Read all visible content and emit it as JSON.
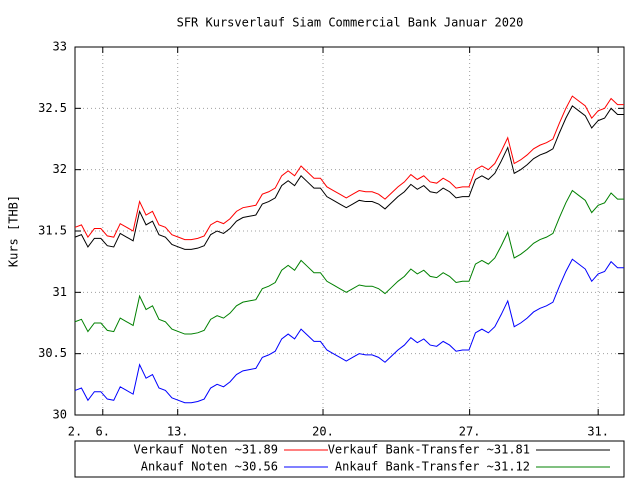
{
  "chart_data": {
    "type": "line",
    "title": "SFR Kursverlauf Siam Commercial Bank Januar 2020",
    "y_label": "Kurs [THB]",
    "x": [
      0,
      1,
      2,
      3,
      4,
      5,
      6,
      7,
      8,
      9,
      10,
      11,
      12,
      13,
      14,
      15,
      16,
      17,
      18,
      19,
      20,
      21,
      22,
      23,
      24,
      25,
      26,
      27,
      28,
      29,
      30,
      31,
      32,
      33,
      34,
      35,
      36,
      37,
      38,
      39,
      40,
      41,
      42,
      43,
      44,
      45,
      46,
      47,
      48,
      49,
      50,
      51,
      52,
      53,
      54,
      55,
      56,
      57,
      58,
      59,
      60,
      61,
      62,
      63,
      64,
      65,
      66,
      67,
      68,
      69,
      70,
      71,
      72,
      73,
      74,
      75,
      76,
      77,
      78,
      79,
      80,
      81,
      82,
      83,
      84,
      85
    ],
    "xlim": [
      0,
      85
    ],
    "xticks": [
      {
        "value": 0,
        "label": "2."
      },
      {
        "value": 4.3,
        "label": "6."
      },
      {
        "value": 15.9,
        "label": "13."
      },
      {
        "value": 38.4,
        "label": "20."
      },
      {
        "value": 61.1,
        "label": "27."
      },
      {
        "value": 81,
        "label": "31."
      }
    ],
    "ylim": [
      30,
      33
    ],
    "yticks": [
      30,
      30.5,
      31,
      31.5,
      32,
      32.5,
      33
    ],
    "grid": true,
    "series": [
      {
        "name": "Verkauf Noten ~31.89",
        "color": "#ff0000",
        "values": [
          31.53,
          31.55,
          31.45,
          31.52,
          31.52,
          31.46,
          31.45,
          31.56,
          31.53,
          31.5,
          31.74,
          31.63,
          31.66,
          31.55,
          31.53,
          31.47,
          31.45,
          31.43,
          31.43,
          31.44,
          31.46,
          31.55,
          31.58,
          31.56,
          31.6,
          31.66,
          31.69,
          31.7,
          31.71,
          31.8,
          31.82,
          31.85,
          31.95,
          31.99,
          31.95,
          32.03,
          31.98,
          31.93,
          31.93,
          31.86,
          31.83,
          31.8,
          31.77,
          31.8,
          31.83,
          31.82,
          31.82,
          31.8,
          31.76,
          31.81,
          31.86,
          31.9,
          31.96,
          31.92,
          31.95,
          31.9,
          31.89,
          31.93,
          31.9,
          31.85,
          31.86,
          31.86,
          32.0,
          32.03,
          32.0,
          32.05,
          32.15,
          32.26,
          32.05,
          32.08,
          32.12,
          32.17,
          32.2,
          32.22,
          32.25,
          32.38,
          32.5,
          32.6,
          32.56,
          32.52,
          32.42,
          32.48,
          32.5,
          32.58,
          32.53,
          32.53
        ]
      },
      {
        "name": "Verkauf Bank-Transfer ~31.81",
        "color": "#000000",
        "values": [
          31.45,
          31.47,
          31.37,
          31.44,
          31.44,
          31.38,
          31.37,
          31.48,
          31.45,
          31.42,
          31.66,
          31.55,
          31.58,
          31.47,
          31.45,
          31.39,
          31.37,
          31.35,
          31.35,
          31.36,
          31.38,
          31.47,
          31.5,
          31.48,
          31.52,
          31.58,
          31.61,
          31.62,
          31.63,
          31.72,
          31.74,
          31.77,
          31.87,
          31.91,
          31.87,
          31.95,
          31.9,
          31.85,
          31.85,
          31.78,
          31.75,
          31.72,
          31.69,
          31.72,
          31.75,
          31.74,
          31.74,
          31.72,
          31.68,
          31.73,
          31.78,
          31.82,
          31.88,
          31.84,
          31.87,
          31.82,
          31.81,
          31.85,
          31.82,
          31.77,
          31.78,
          31.78,
          31.92,
          31.95,
          31.92,
          31.97,
          32.07,
          32.18,
          31.97,
          32.0,
          32.04,
          32.09,
          32.12,
          32.14,
          32.17,
          32.3,
          32.42,
          32.52,
          32.48,
          32.44,
          32.34,
          32.4,
          32.42,
          32.5,
          32.45,
          32.45
        ]
      },
      {
        "name": "Ankauf Noten ~30.56",
        "color": "#0000ff",
        "values": [
          30.2,
          30.22,
          30.12,
          30.19,
          30.19,
          30.13,
          30.12,
          30.23,
          30.2,
          30.17,
          30.41,
          30.3,
          30.33,
          30.22,
          30.2,
          30.14,
          30.12,
          30.1,
          30.1,
          30.11,
          30.13,
          30.22,
          30.25,
          30.23,
          30.27,
          30.33,
          30.36,
          30.37,
          30.38,
          30.47,
          30.49,
          30.52,
          30.62,
          30.66,
          30.62,
          30.7,
          30.65,
          30.6,
          30.6,
          30.53,
          30.5,
          30.47,
          30.44,
          30.47,
          30.5,
          30.49,
          30.49,
          30.47,
          30.43,
          30.48,
          30.53,
          30.57,
          30.63,
          30.59,
          30.62,
          30.57,
          30.56,
          30.6,
          30.57,
          30.52,
          30.53,
          30.53,
          30.67,
          30.7,
          30.67,
          30.72,
          30.82,
          30.93,
          30.72,
          30.75,
          30.79,
          30.84,
          30.87,
          30.89,
          30.92,
          31.05,
          31.17,
          31.27,
          31.23,
          31.19,
          31.09,
          31.15,
          31.17,
          31.25,
          31.2,
          31.2
        ]
      },
      {
        "name": "Ankauf Bank-Transfer ~31.12",
        "color": "#008000",
        "values": [
          30.76,
          30.78,
          30.68,
          30.75,
          30.75,
          30.69,
          30.68,
          30.79,
          30.76,
          30.73,
          30.97,
          30.86,
          30.89,
          30.78,
          30.76,
          30.7,
          30.68,
          30.66,
          30.66,
          30.67,
          30.69,
          30.78,
          30.81,
          30.79,
          30.83,
          30.89,
          30.92,
          30.93,
          30.94,
          31.03,
          31.05,
          31.08,
          31.18,
          31.22,
          31.18,
          31.26,
          31.21,
          31.16,
          31.16,
          31.09,
          31.06,
          31.03,
          31.0,
          31.03,
          31.06,
          31.05,
          31.05,
          31.03,
          30.99,
          31.04,
          31.09,
          31.13,
          31.19,
          31.15,
          31.18,
          31.13,
          31.12,
          31.16,
          31.13,
          31.08,
          31.09,
          31.09,
          31.23,
          31.26,
          31.23,
          31.28,
          31.38,
          31.49,
          31.28,
          31.31,
          31.35,
          31.4,
          31.43,
          31.45,
          31.48,
          31.61,
          31.73,
          31.83,
          31.79,
          31.75,
          31.65,
          31.71,
          31.73,
          31.81,
          31.76,
          31.76
        ]
      }
    ]
  }
}
